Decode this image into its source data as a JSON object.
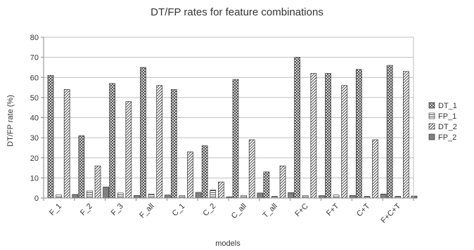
{
  "chart_data": {
    "type": "bar",
    "title": "DT/FP rates for feature combinations",
    "xlabel": "models",
    "ylabel": "DT/FP rate (%)",
    "ylim": [
      0,
      80
    ],
    "yticks": [
      0,
      10,
      20,
      30,
      40,
      50,
      60,
      70,
      80
    ],
    "grid": true,
    "legend_position": "right",
    "categories": [
      "F_1",
      "F_2",
      "F_3",
      "F_all",
      "C_1",
      "C_2",
      "C_all",
      "T_all",
      "F+C",
      "F+T",
      "C+T",
      "F+C+T"
    ],
    "series": [
      {
        "name": "DT_1",
        "pattern": "crosshatch",
        "values": [
          61,
          31,
          57,
          65,
          54,
          26,
          59,
          13,
          70,
          62,
          64,
          66
        ]
      },
      {
        "name": "FP_1",
        "pattern": "horizontal",
        "values": [
          1.5,
          3.5,
          2.5,
          2,
          1.2,
          4,
          1.3,
          0.8,
          1.2,
          1.5,
          0.8,
          0.8
        ]
      },
      {
        "name": "DT_2",
        "pattern": "diagonal",
        "values": [
          54,
          16,
          48,
          56,
          23,
          8,
          29,
          16,
          62,
          56,
          29,
          63
        ]
      },
      {
        "name": "FP_2",
        "pattern": "solid",
        "values": [
          1.8,
          5.5,
          1.3,
          1.5,
          2.8,
          0.6,
          2.5,
          2.7,
          1.2,
          1.3,
          2,
          1
        ]
      }
    ],
    "colors": {
      "axis": "#888888",
      "grid": "#bfbfbf",
      "bar_stroke": "#333333",
      "solid_fill": "#808080"
    }
  }
}
